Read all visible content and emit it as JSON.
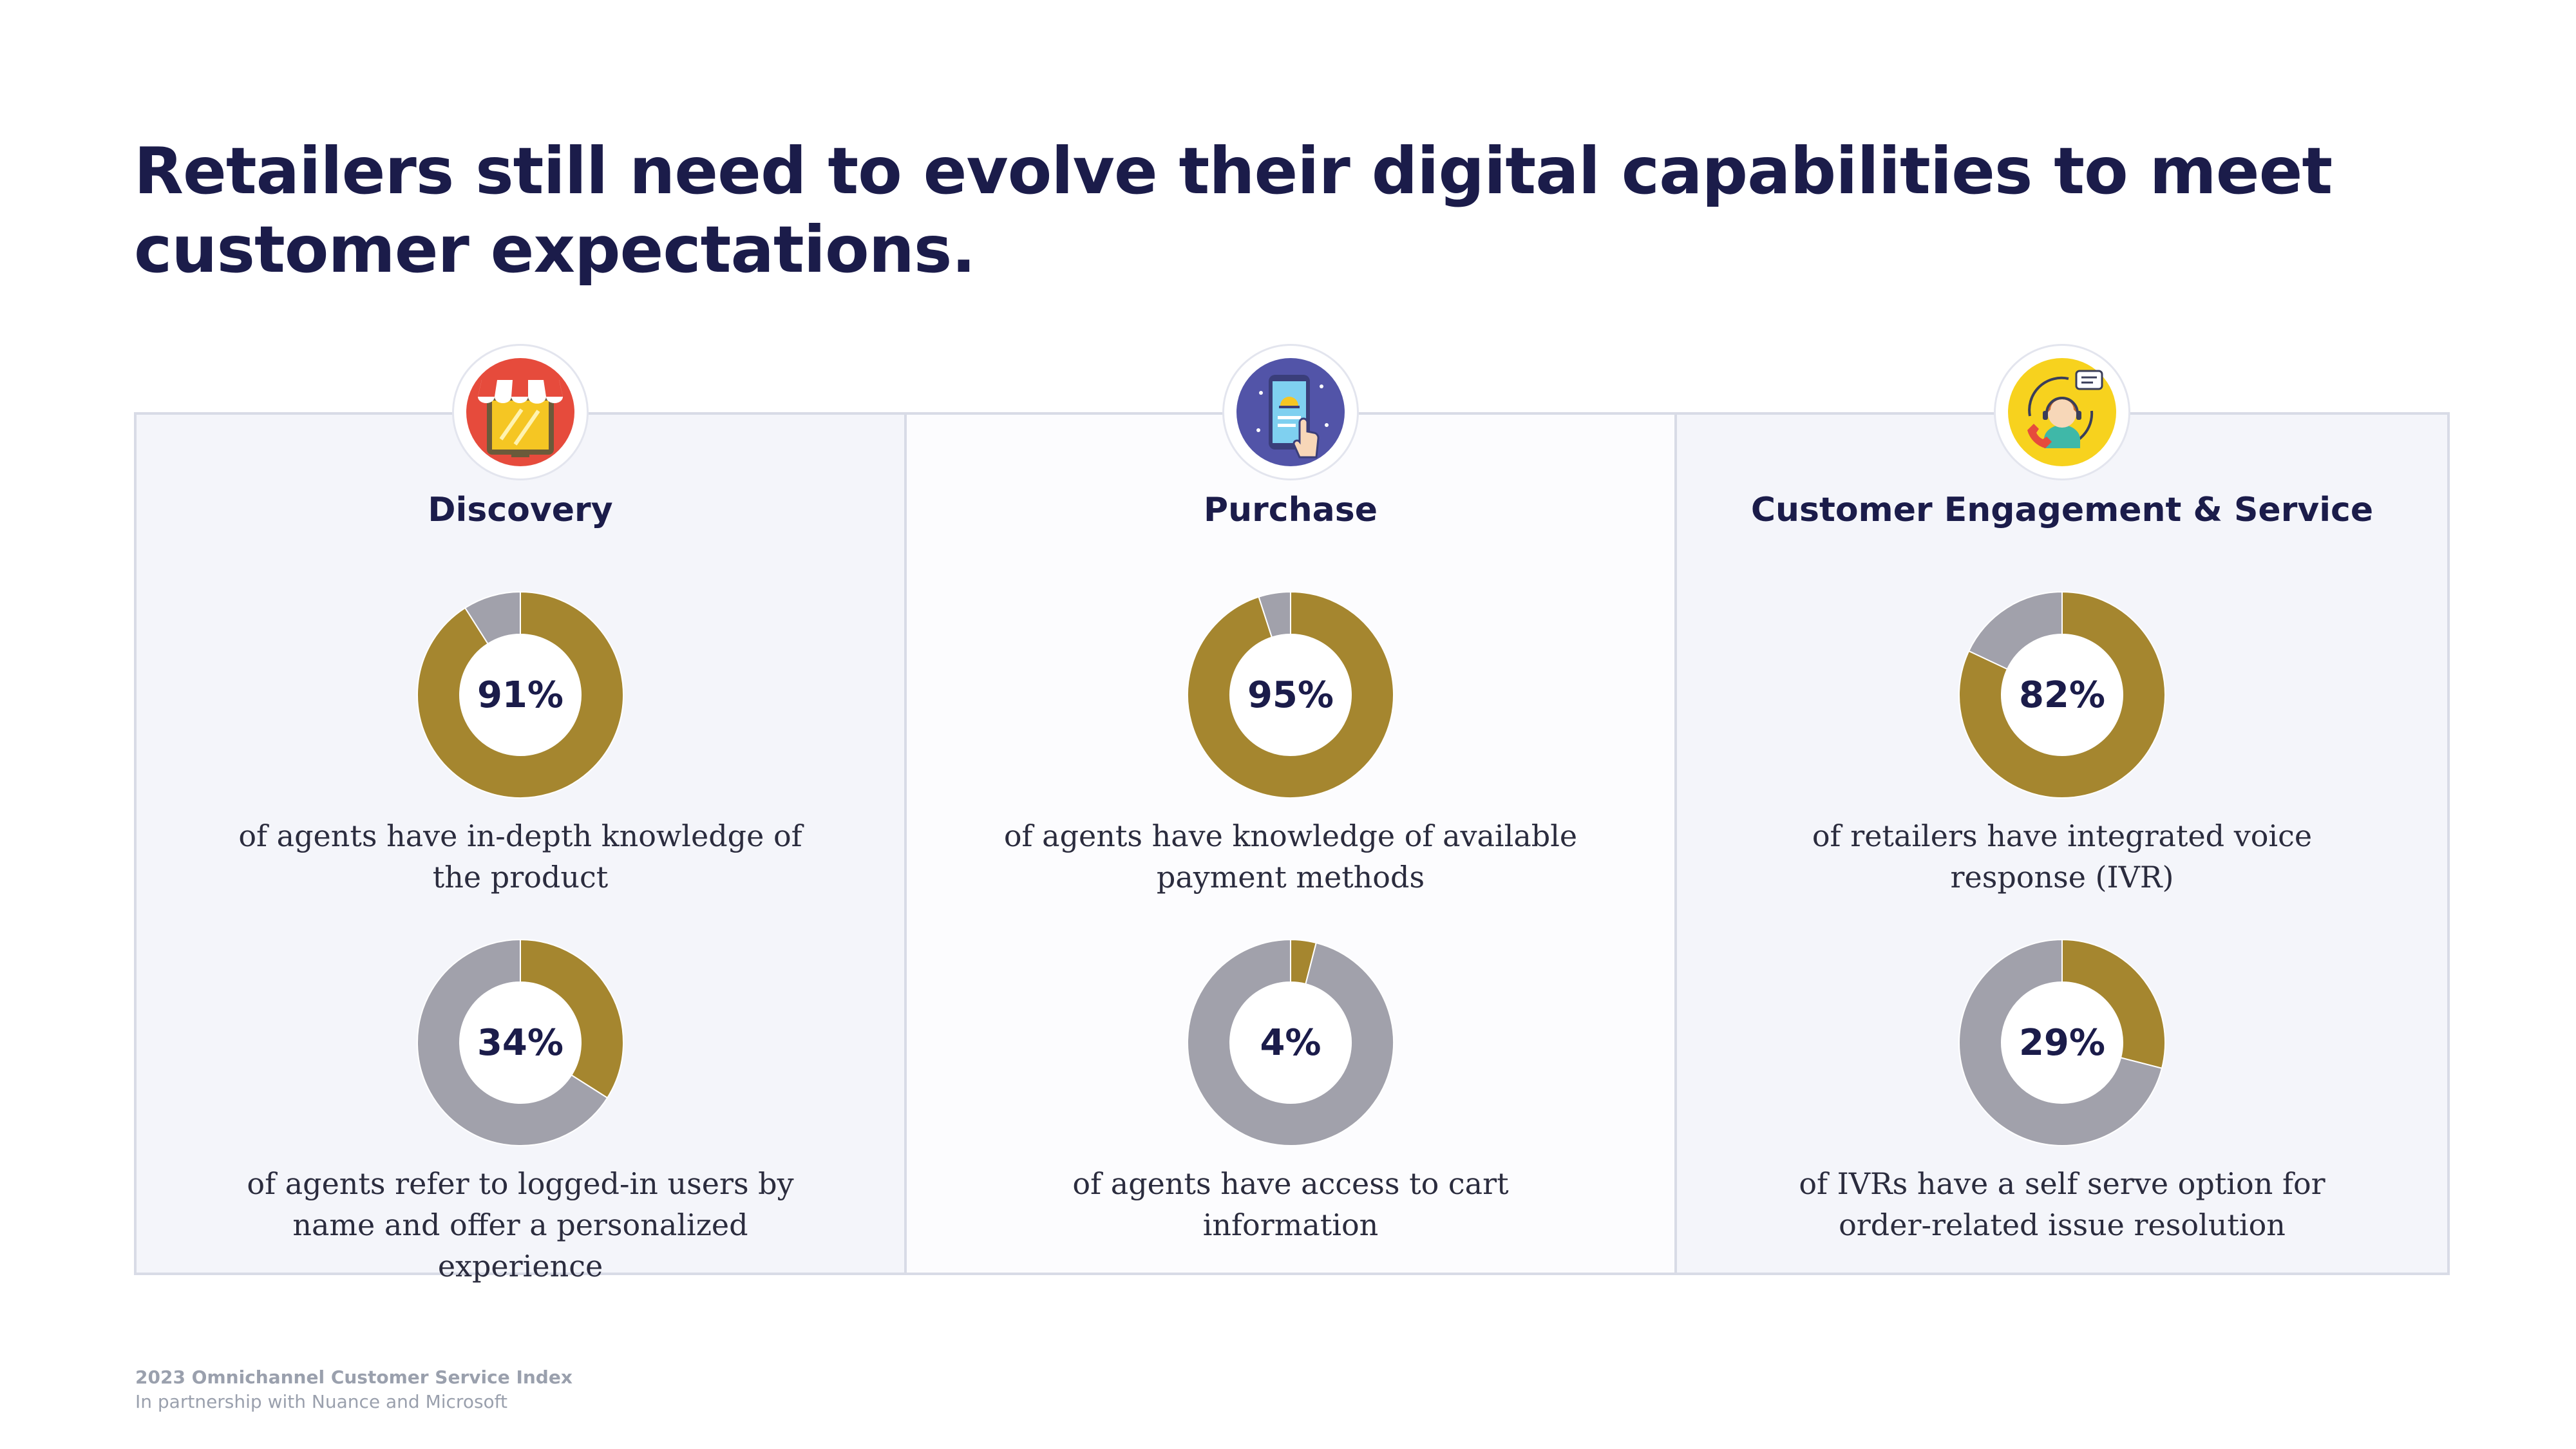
{
  "title": "Retailers still need to evolve their digital capabilities to meet customer expectations.",
  "colors": {
    "filled": "#a5862f",
    "remaining": "#a1a1ab",
    "text": "#1b1c4a"
  },
  "chart_data": [
    {
      "type": "pie",
      "panel": "Discovery",
      "value": 91,
      "label": "91%",
      "caption": "of agents have in-depth knowledge of the product"
    },
    {
      "type": "pie",
      "panel": "Discovery",
      "value": 34,
      "label": "34%",
      "caption": "of agents refer to logged-in users by name and offer a personalized experience"
    },
    {
      "type": "pie",
      "panel": "Purchase",
      "value": 95,
      "label": "95%",
      "caption": "of agents have knowledge of available payment methods"
    },
    {
      "type": "pie",
      "panel": "Purchase",
      "value": 4,
      "label": "4%",
      "caption": "of agents have access to cart information"
    },
    {
      "type": "pie",
      "panel": "Customer Engagement & Service",
      "value": 82,
      "label": "82%",
      "caption": "of retailers have integrated voice response (IVR)"
    },
    {
      "type": "pie",
      "panel": "Customer Engagement & Service",
      "value": 29,
      "label": "29%",
      "caption": "of IVRs have a self serve option for order-related issue resolution"
    }
  ],
  "panels": [
    {
      "title": "Discovery",
      "icon": "storefront-icon"
    },
    {
      "title": "Purchase",
      "icon": "mobile-payment-icon"
    },
    {
      "title": "Customer Engagement & Service",
      "icon": "customer-support-icon"
    }
  ],
  "footer": {
    "source": "2023 Omnichannel Customer Service Index",
    "partner": "In partnership with Nuance and Microsoft"
  }
}
